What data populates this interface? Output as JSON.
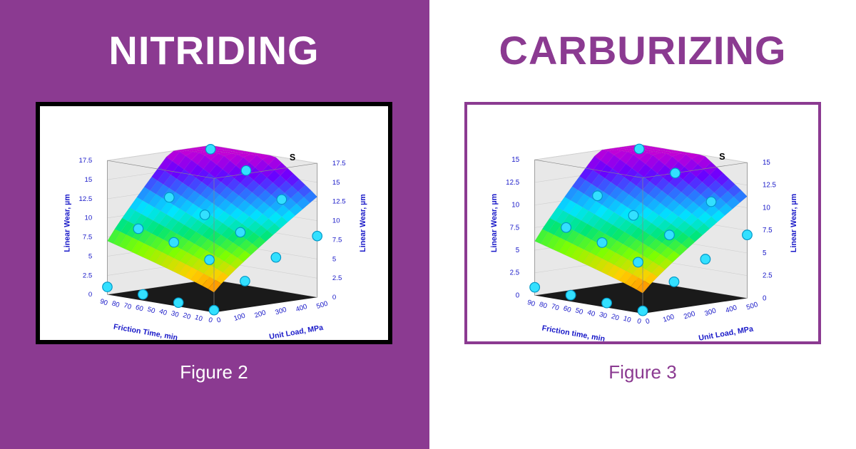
{
  "left": {
    "title": "NITRIDING",
    "caption": "Figure 2",
    "panel_bg": "#8b3a91",
    "title_color": "#ffffff",
    "frame_border": "#000000",
    "chart": {
      "type": "3d-surface",
      "series_label": "S",
      "x_axis": {
        "label": "Friction Time, min",
        "ticks": [
          0,
          10,
          20,
          30,
          40,
          50,
          60,
          70,
          80,
          90
        ]
      },
      "y_axis": {
        "label": "Unit Load, MPa",
        "ticks": [
          0,
          100,
          200,
          300,
          400,
          500
        ]
      },
      "z_axis": {
        "label": "Linear Wear, µm",
        "ticks_left": [
          0,
          2.5,
          5,
          7.5,
          10,
          12.5,
          15,
          17.5
        ],
        "ticks_right": [
          0,
          2.5,
          5,
          7.5,
          10,
          12.5,
          15,
          17.5
        ]
      },
      "axis_text_color": "#1818c8",
      "grid_color": "#cfcfcf",
      "floor_color": "#1a1a1a",
      "wall_color": "#e8e8e8",
      "surface_colormap": [
        "#d60000",
        "#ff6a00",
        "#ffd000",
        "#7fff00",
        "#00e676",
        "#00e5ff",
        "#2979ff",
        "#6a00ff",
        "#c400d6"
      ],
      "marker_color": "#33e0ff",
      "marker_stroke": "#0097c7",
      "marker_radius": 7,
      "markers_xyz": [
        [
          0,
          0,
          0.3
        ],
        [
          30,
          0,
          0.5
        ],
        [
          60,
          0,
          0.8
        ],
        [
          90,
          0,
          1.0
        ],
        [
          0,
          150,
          3.5
        ],
        [
          30,
          150,
          5.5
        ],
        [
          60,
          150,
          7.0
        ],
        [
          90,
          150,
          8.0
        ],
        [
          0,
          300,
          6.0
        ],
        [
          30,
          300,
          8.5
        ],
        [
          60,
          300,
          10.0
        ],
        [
          90,
          300,
          11.5
        ],
        [
          0,
          500,
          8.0
        ],
        [
          30,
          500,
          12.0
        ],
        [
          60,
          500,
          15.0
        ],
        [
          90,
          500,
          17.0
        ]
      ],
      "axis_label_fontsize": 11,
      "tick_fontsize": 10
    }
  },
  "right": {
    "title": "CARBURIZING",
    "caption": "Figure 3",
    "panel_bg": "#ffffff",
    "title_color": "#8b3a91",
    "frame_border": "#8b3a91",
    "chart": {
      "type": "3d-surface",
      "series_label": "S",
      "x_axis": {
        "label": "Friction time, min",
        "ticks": [
          0,
          10,
          20,
          30,
          40,
          50,
          60,
          70,
          80,
          90
        ]
      },
      "y_axis": {
        "label": "Unit Load, MPa",
        "ticks": [
          0,
          100,
          200,
          300,
          400,
          500
        ]
      },
      "z_axis": {
        "label": "Linear Wear, µm",
        "ticks_left": [
          0,
          2.5,
          5,
          7.5,
          10,
          12.5,
          15
        ],
        "ticks_right": [
          0,
          2.5,
          5,
          7.5,
          10,
          12.5,
          15
        ]
      },
      "axis_text_color": "#1818c8",
      "grid_color": "#cfcfcf",
      "floor_color": "#1a1a1a",
      "wall_color": "#e8e8e8",
      "surface_colormap": [
        "#d60000",
        "#ff6a00",
        "#ffd000",
        "#7fff00",
        "#00e676",
        "#00e5ff",
        "#2979ff",
        "#6a00ff",
        "#c400d6"
      ],
      "marker_color": "#33e0ff",
      "marker_stroke": "#0097c7",
      "marker_radius": 7,
      "markers_xyz": [
        [
          0,
          0,
          0.3
        ],
        [
          30,
          0,
          0.5
        ],
        [
          60,
          0,
          0.7
        ],
        [
          90,
          0,
          0.9
        ],
        [
          0,
          150,
          3.0
        ],
        [
          30,
          150,
          4.5
        ],
        [
          60,
          150,
          6.0
        ],
        [
          90,
          150,
          7.0
        ],
        [
          0,
          300,
          5.0
        ],
        [
          30,
          300,
          7.0
        ],
        [
          60,
          300,
          8.5
        ],
        [
          90,
          300,
          10.0
        ],
        [
          0,
          500,
          7.0
        ],
        [
          30,
          500,
          10.0
        ],
        [
          60,
          500,
          12.5
        ],
        [
          90,
          500,
          14.5
        ]
      ],
      "axis_label_fontsize": 11,
      "tick_fontsize": 10
    }
  }
}
